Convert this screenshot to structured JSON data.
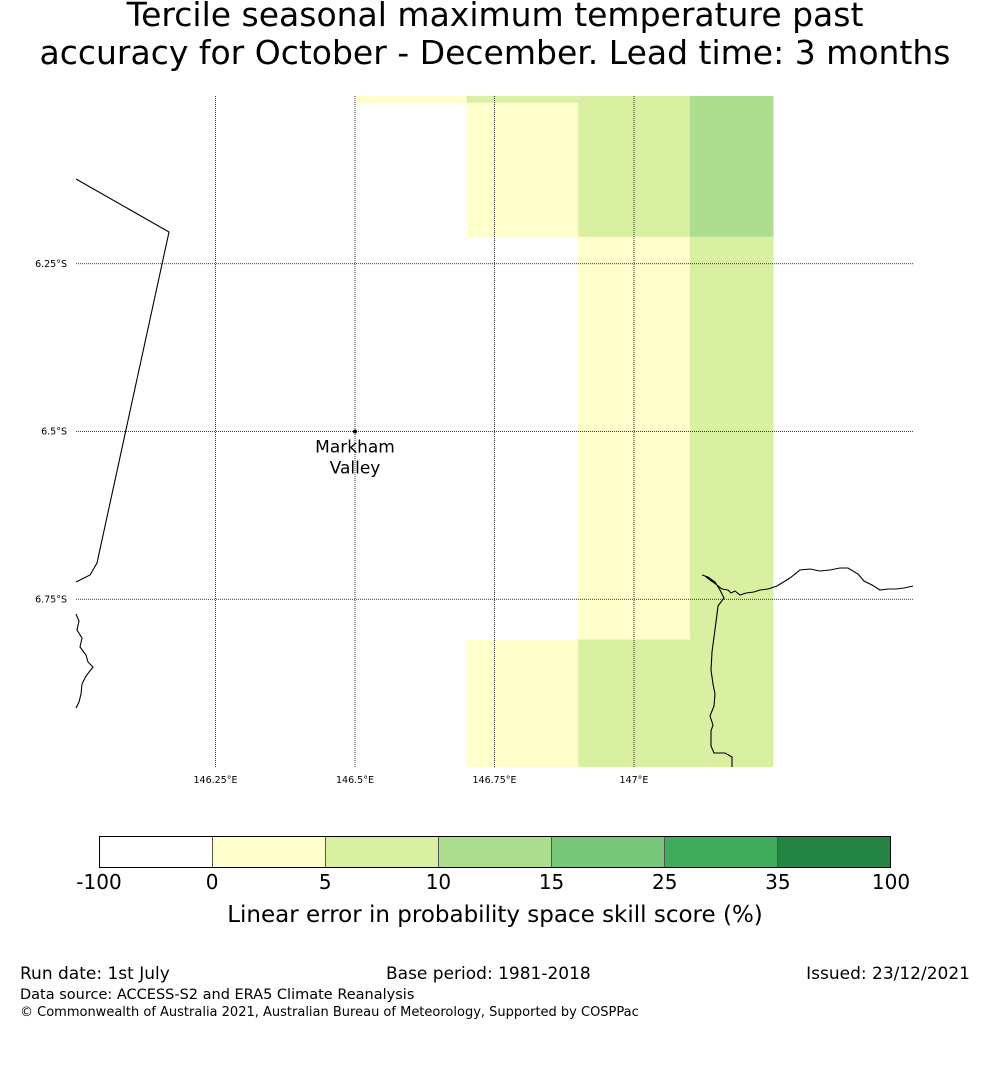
{
  "title": {
    "line1": "Tercile seasonal maximum temperature past",
    "line2": "accuracy for October - December. Lead time: 3 months"
  },
  "map": {
    "lon_range": [
      146.0,
      147.5
    ],
    "lat_range": [
      -6.0,
      -7.0
    ],
    "lon_ticks": [
      {
        "value": 146.25,
        "label": "146.25°E"
      },
      {
        "value": 146.5,
        "label": "146.5°E"
      },
      {
        "value": 146.75,
        "label": "146.75°E"
      },
      {
        "value": 147.0,
        "label": "147°E"
      }
    ],
    "lat_ticks": [
      {
        "value": -6.25,
        "label": "6.25°S"
      },
      {
        "value": -6.5,
        "label": "6.5°S"
      },
      {
        "value": -6.75,
        "label": "6.75°S"
      }
    ],
    "place": {
      "name_line1": "Markham",
      "name_line2": "Valley",
      "lon": 146.5,
      "lat": -6.5
    },
    "grid_cells": [
      {
        "lon0": 146.5,
        "lon1": 146.7,
        "lat0": -6.0,
        "lat1": -6.01,
        "category": "0-5"
      },
      {
        "lon0": 146.7,
        "lon1": 146.9,
        "lat0": -6.0,
        "lat1": -6.01,
        "category": "5-10"
      },
      {
        "lon0": 146.7,
        "lon1": 146.9,
        "lat0": -6.01,
        "lat1": -6.21,
        "category": "0-5"
      },
      {
        "lon0": 146.9,
        "lon1": 147.1,
        "lat0": -6.0,
        "lat1": -6.21,
        "category": "5-10"
      },
      {
        "lon0": 147.1,
        "lon1": 147.25,
        "lat0": -6.0,
        "lat1": -6.21,
        "category": "10-15"
      },
      {
        "lon0": 146.9,
        "lon1": 147.1,
        "lat0": -6.21,
        "lat1": -6.81,
        "category": "0-5"
      },
      {
        "lon0": 147.1,
        "lon1": 147.25,
        "lat0": -6.21,
        "lat1": -7.0,
        "category": "5-10"
      },
      {
        "lon0": 146.7,
        "lon1": 146.9,
        "lat0": -6.81,
        "lat1": -7.0,
        "category": "0-5"
      },
      {
        "lon0": 146.9,
        "lon1": 147.1,
        "lat0": -6.81,
        "lat1": -7.0,
        "category": "5-10"
      }
    ]
  },
  "colorbar": {
    "ticks": [
      "-100",
      "0",
      "5",
      "10",
      "15",
      "25",
      "35",
      "100"
    ],
    "colors": [
      "#ffffff",
      "#ffffcc",
      "#d9f0a3",
      "#addd8e",
      "#78c679",
      "#41ab5d",
      "#238443"
    ],
    "label": "Linear error in probability space skill score (%)"
  },
  "footer": {
    "run_date": "Run date: 1st July",
    "base_period": "Base period: 1981-2018",
    "issued": "Issued: 23/12/2021",
    "data_source": "Data source: ACCESS-S2 and ERA5 Climate Reanalysis",
    "copyright": "© Commonwealth of Australia 2021, Australian Bureau of Meteorology, Supported by COSPPac"
  }
}
